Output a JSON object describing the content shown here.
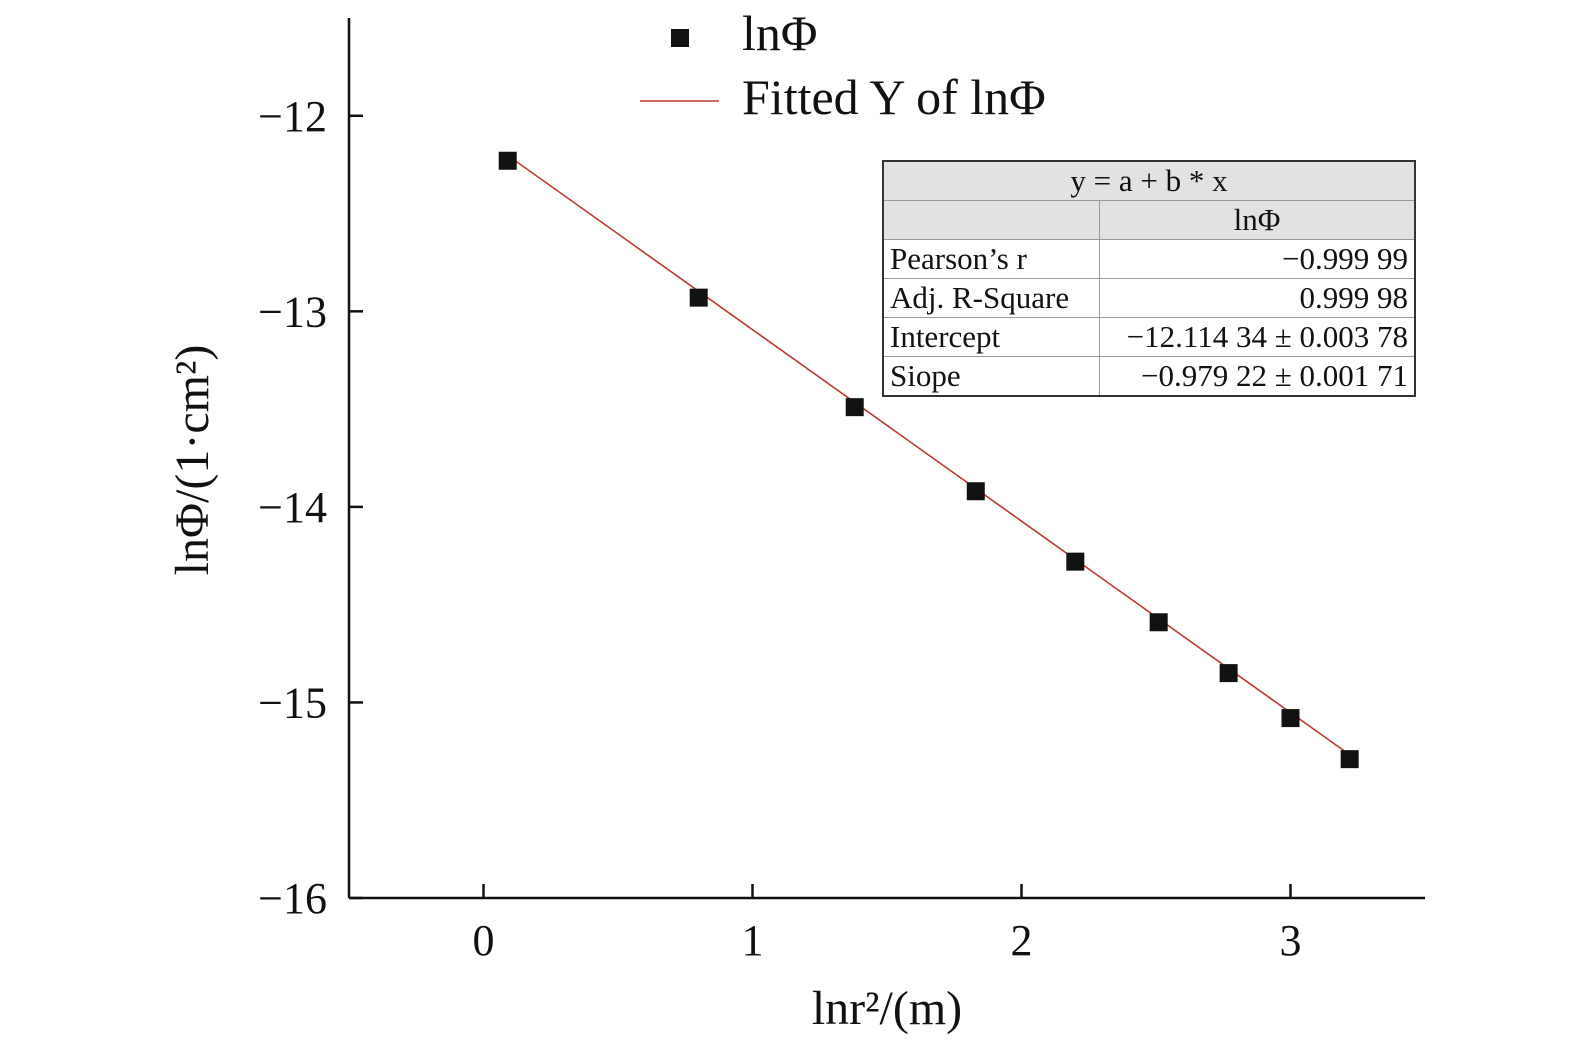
{
  "chart_data": {
    "type": "scatter",
    "xlabel": "lnr²/(m)",
    "ylabel": "lnΦ/(1·cm²)",
    "xlim": [
      -0.5,
      3.5
    ],
    "ylim": [
      -16,
      -11.5
    ],
    "xticks": [
      "0",
      "1",
      "2",
      "3"
    ],
    "yticks": [
      "−12",
      "−13",
      "−14",
      "−15",
      "−16"
    ],
    "grid": false,
    "legend_position": "top-center",
    "series": [
      {
        "name": "lnΦ",
        "kind": "points",
        "color": "#111111",
        "x": [
          0.09,
          0.8,
          1.38,
          1.83,
          2.2,
          2.51,
          2.77,
          3.0,
          3.22
        ],
        "y": [
          -12.23,
          -12.93,
          -13.49,
          -13.92,
          -14.28,
          -14.59,
          -14.85,
          -15.08,
          -15.29
        ]
      },
      {
        "name": "Fitted Y of lnΦ",
        "kind": "line",
        "color": "#c0392b",
        "intercept": -12.11434,
        "slope": -0.97922,
        "x_range": [
          0.09,
          3.22
        ]
      }
    ],
    "fit_table": {
      "equation": "y = a + b * x",
      "column": "lnΦ",
      "rows": [
        {
          "label": "Pearson’s r",
          "value": "−0.999 99"
        },
        {
          "label": "Adj. R-Square",
          "value": "0.999 98"
        },
        {
          "label": "Intercept",
          "value": "−12.114 34 ± 0.003 78"
        },
        {
          "label": "Siope",
          "value": "−0.979 22 ± 0.001 71"
        }
      ]
    }
  }
}
